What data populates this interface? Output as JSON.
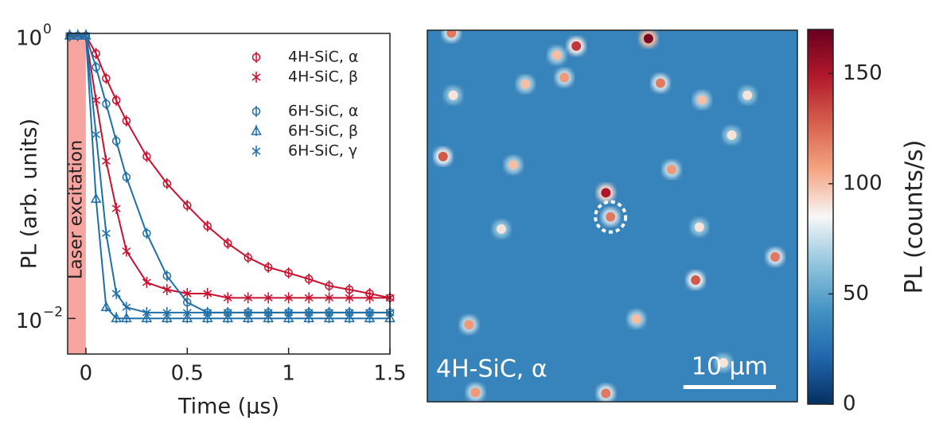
{
  "chart_data": [
    {
      "type": "decay",
      "xlabel": "Time (µs)",
      "ylabel": "PL (arb. units)",
      "xlim": [
        -0.09,
        1.5
      ],
      "ylim": [
        0.0056,
        1.04
      ],
      "log_y": true,
      "xticks": [
        0,
        0.5,
        1,
        1.5
      ],
      "yticks": [
        {
          "value": 1,
          "label": "10",
          "exponent": "0"
        },
        {
          "value": 0.01,
          "label": "10",
          "exponent": "−2"
        }
      ],
      "laser": {
        "label": "Laser excitation",
        "end": 0,
        "color": "#f6a5a0"
      },
      "x": [
        -0.08,
        -0.04,
        0,
        0.05,
        0.1,
        0.15,
        0.2,
        0.3,
        0.4,
        0.5,
        0.6,
        0.7,
        0.8,
        0.9,
        1.0,
        1.1,
        1.2,
        1.3,
        1.4,
        1.5
      ],
      "series": [
        {
          "name": "4H-SiC, α",
          "color": "#c8102e",
          "marker": "circle",
          "values": [
            1,
            1,
            1,
            0.75,
            0.5,
            0.35,
            0.25,
            0.14,
            0.09,
            0.063,
            0.045,
            0.034,
            0.027,
            0.023,
            0.021,
            0.019,
            0.017,
            0.016,
            0.015,
            0.014
          ]
        },
        {
          "name": "4H-SiC, β",
          "color": "#c8102e",
          "marker": "asterisk",
          "values": [
            1,
            1,
            1,
            0.35,
            0.13,
            0.06,
            0.03,
            0.018,
            0.016,
            0.015,
            0.015,
            0.014,
            0.014,
            0.014,
            0.014,
            0.014,
            0.014,
            0.014,
            0.014,
            0.014
          ]
        },
        {
          "name": "6H-SiC, α",
          "color": "#1f6fa8",
          "marker": "circle",
          "values": [
            1,
            1,
            1,
            0.6,
            0.33,
            0.18,
            0.1,
            0.04,
            0.02,
            0.013,
            0.011,
            0.011,
            0.011,
            0.011,
            0.011,
            0.011,
            0.011,
            0.011,
            0.011,
            0.011
          ]
        },
        {
          "name": "6H-SiC, β",
          "color": "#1f6fa8",
          "marker": "triangle",
          "values": [
            1,
            1,
            1,
            0.07,
            0.012,
            0.01,
            0.01,
            0.01,
            0.01,
            0.01,
            0.01,
            0.01,
            0.01,
            0.01,
            0.01,
            0.01,
            0.01,
            0.01,
            0.01,
            0.01
          ]
        },
        {
          "name": "6H-SiC, γ",
          "color": "#1f6fa8",
          "marker": "asterisk",
          "values": [
            1,
            1,
            1,
            0.2,
            0.04,
            0.015,
            0.012,
            0.011,
            0.011,
            0.011,
            0.011,
            0.011,
            0.011,
            0.011,
            0.011,
            0.011,
            0.011,
            0.011,
            0.011,
            0.011
          ]
        }
      ]
    },
    {
      "type": "heatmap",
      "label": "4H-SiC, α",
      "colorbar_label": "PL (counts/s)",
      "xlim": [
        0,
        40
      ],
      "ylim": [
        0,
        40
      ],
      "clim": [
        0,
        170
      ],
      "cticks": [
        0,
        50,
        100,
        150
      ],
      "colormap": [
        "#053061",
        "#2166ac",
        "#4393c3",
        "#92c5de",
        "#f7f7f7",
        "#f4a582",
        "#d6604d",
        "#b2182b",
        "#67001f"
      ],
      "background": 35,
      "scale_bar": {
        "length": 10,
        "label": "10 µm"
      },
      "spots": [
        {
          "x": 23.9,
          "y": 0.9,
          "value": 165
        },
        {
          "x": 16.1,
          "y": 1.7,
          "value": 140
        },
        {
          "x": 2.6,
          "y": 0.3,
          "value": 120
        },
        {
          "x": 14.8,
          "y": 5.1,
          "value": 110
        },
        {
          "x": 25.2,
          "y": 5.7,
          "value": 120
        },
        {
          "x": 10.6,
          "y": 5.8,
          "value": 100
        },
        {
          "x": 2.8,
          "y": 7.0,
          "value": 90
        },
        {
          "x": 19.3,
          "y": 17.5,
          "value": 150
        },
        {
          "x": 19.8,
          "y": 20.1,
          "value": 120,
          "circled": true
        },
        {
          "x": 1.7,
          "y": 13.6,
          "value": 130
        },
        {
          "x": 9.3,
          "y": 14.5,
          "value": 100
        },
        {
          "x": 26.4,
          "y": 15.0,
          "value": 110
        },
        {
          "x": 8.0,
          "y": 21.4,
          "value": 90
        },
        {
          "x": 37.6,
          "y": 24.4,
          "value": 120
        },
        {
          "x": 29.0,
          "y": 26.9,
          "value": 130
        },
        {
          "x": 14.0,
          "y": 2.7,
          "value": 100
        },
        {
          "x": 29.7,
          "y": 7.5,
          "value": 100
        },
        {
          "x": 34.6,
          "y": 7.0,
          "value": 90
        },
        {
          "x": 4.5,
          "y": 31.7,
          "value": 110
        },
        {
          "x": 22.6,
          "y": 31.1,
          "value": 100
        },
        {
          "x": 5.2,
          "y": 39.0,
          "value": 110
        },
        {
          "x": 19.3,
          "y": 39.1,
          "value": 120
        },
        {
          "x": 32.9,
          "y": 11.3,
          "value": 90
        },
        {
          "x": 32.0,
          "y": 35.8,
          "value": 90
        },
        {
          "x": 29.4,
          "y": 21.2,
          "value": 90
        }
      ]
    }
  ]
}
